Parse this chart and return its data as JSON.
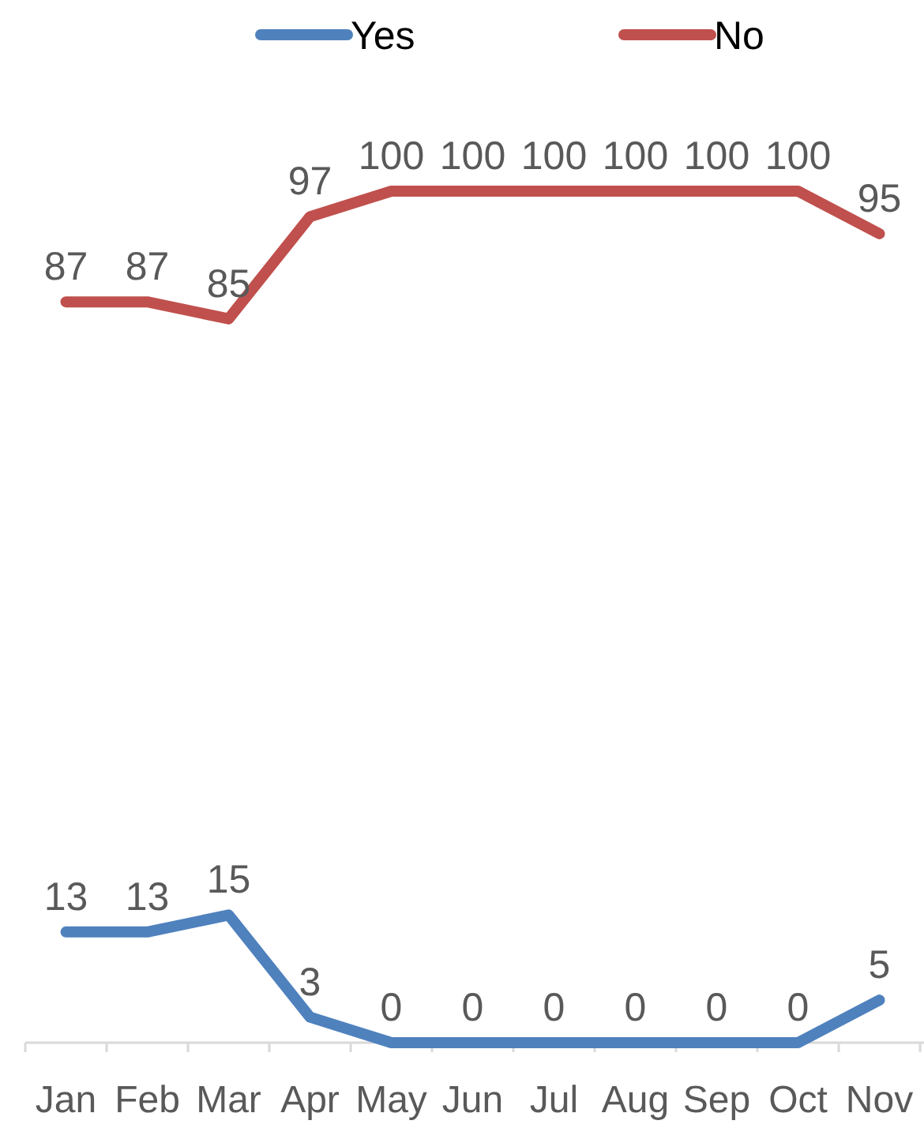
{
  "chart_data": {
    "type": "line",
    "categories": [
      "Jan",
      "Feb",
      "Mar",
      "Apr",
      "May",
      "Jun",
      "Jul",
      "Aug",
      "Sep",
      "Oct",
      "Nov"
    ],
    "series": [
      {
        "name": "Yes",
        "color": "#4f81bd",
        "values": [
          13,
          13,
          15,
          3,
          0,
          0,
          0,
          0,
          0,
          0,
          5
        ]
      },
      {
        "name": "No",
        "color": "#c0504d",
        "values": [
          87,
          87,
          85,
          97,
          100,
          100,
          100,
          100,
          100,
          100,
          95
        ]
      }
    ],
    "data_labels": true,
    "legend": "top",
    "tick_labels": "x",
    "marker": "none"
  }
}
